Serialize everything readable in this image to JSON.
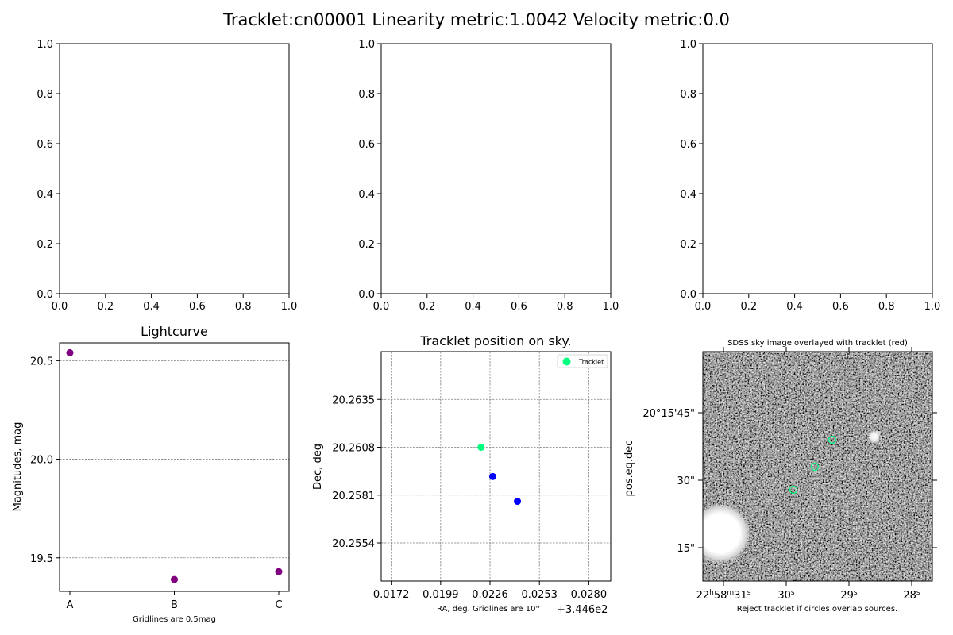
{
  "figure": {
    "title": "Tracklet:cn00001 Linearity metric:1.0042 Velocity metric:0.0"
  },
  "empty_axes": {
    "ticks": [
      "0.0",
      "0.2",
      "0.4",
      "0.6",
      "0.8",
      "1.0"
    ]
  },
  "chart_data": [
    {
      "type": "scatter",
      "title": "Lightcurve",
      "xlabel": "Gridlines are 0.5mag",
      "ylabel": "Magnitudes, mag",
      "categories": [
        "A",
        "B",
        "C"
      ],
      "values": [
        20.54,
        19.39,
        19.43
      ],
      "yticks": [
        "19.5",
        "20.0",
        "20.5"
      ],
      "ylim": [
        19.33,
        20.59
      ],
      "grid": "horizontal dashed",
      "color": "#800080"
    },
    {
      "type": "scatter",
      "title": "Tracklet position on sky.",
      "xlabel": "RA, deg.  Gridlines are 10''",
      "x_offset_label": "+3.446e2",
      "ylabel": "Dec, deg",
      "xticks": [
        "0.0172",
        "0.0199",
        "0.0226",
        "0.0253",
        "0.0280"
      ],
      "yticks": [
        "20.2554",
        "20.2581",
        "20.2608",
        "20.2635"
      ],
      "xlim": [
        0.01665,
        0.0292
      ],
      "ylim": [
        20.25325,
        20.2662
      ],
      "legend": {
        "label": "Tracklet",
        "location": "top-right"
      },
      "series": [
        {
          "name": "Tracklet",
          "color": "#00ff7f",
          "points": [
            [
              0.02211,
              20.2608
            ]
          ]
        },
        {
          "color": "#0000ff",
          "points": [
            [
              0.02275,
              20.25915
            ],
            [
              0.0241,
              20.25775
            ]
          ]
        }
      ]
    },
    {
      "type": "image",
      "title": "SDSS sky image overlayed with tracklet (red)",
      "ylabel": "pos.eq.dec",
      "footer": "Reject tracklet if circles overlap sources.",
      "xtick_labels": [
        {
          "text": "22h58m31s",
          "main": "22",
          "parts": [
            [
              "h",
              "58"
            ],
            [
              "m",
              "31"
            ],
            [
              "s",
              ""
            ]
          ]
        },
        {
          "text": "30s",
          "main": "30",
          "parts": [
            [
              "s",
              ""
            ]
          ]
        },
        {
          "text": "29s",
          "main": "29",
          "parts": [
            [
              "s",
              ""
            ]
          ]
        },
        {
          "text": "28s",
          "main": "28",
          "parts": [
            [
              "s",
              ""
            ]
          ]
        }
      ],
      "ytick_labels": [
        "20°15'45\"",
        "30\"",
        "15\""
      ],
      "circle_color": "#00ff7f",
      "circles": 3
    }
  ]
}
